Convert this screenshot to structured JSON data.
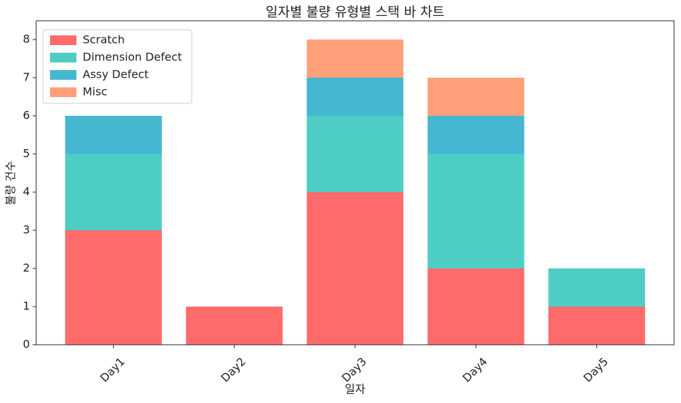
{
  "chart_data": {
    "type": "stacked-bar",
    "title": "일자별 불량 유형별 스택 바 차트",
    "x_label": "일자",
    "y_label": "불량 건수",
    "categories": [
      "Day1",
      "Day2",
      "Day3",
      "Day4",
      "Day5"
    ],
    "series": [
      {
        "name": "Scratch",
        "color": "#FF6B6B",
        "values": [
          3,
          1,
          4,
          2,
          1
        ]
      },
      {
        "name": "Dimension Defect",
        "color": "#4ECDC4",
        "values": [
          2,
          0,
          2,
          3,
          1
        ]
      },
      {
        "name": "Assy Defect",
        "color": "#45B7D1",
        "values": [
          1,
          0,
          1,
          1,
          0
        ]
      },
      {
        "name": "Misc",
        "color": "#FFA07A",
        "values": [
          0,
          0,
          1,
          1,
          0
        ]
      }
    ],
    "ylim": [
      0,
      8.4
    ],
    "yticks": [
      0,
      1,
      2,
      3,
      4,
      5,
      6,
      7,
      8
    ],
    "legend": "upper left"
  }
}
